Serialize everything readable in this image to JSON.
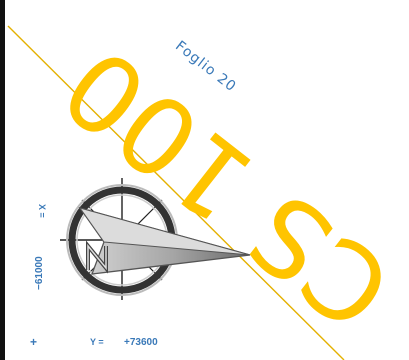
{
  "sheet": {
    "label": "Foglio 20",
    "stamp": "CS 100"
  },
  "coordinates": {
    "x_label": "X  =",
    "x_value": "−61000",
    "y_label": "Y  =",
    "y_value": "+73600",
    "cross_mark": "+"
  },
  "colors": {
    "stamp": "#ffc400",
    "boundary_line": "#e4b100",
    "labels": "#3a79b8",
    "compass_ring": "#333333",
    "compass_needle": "#9a9a9a"
  },
  "symbols": {
    "north_arrow": "compass-rose-icon"
  }
}
